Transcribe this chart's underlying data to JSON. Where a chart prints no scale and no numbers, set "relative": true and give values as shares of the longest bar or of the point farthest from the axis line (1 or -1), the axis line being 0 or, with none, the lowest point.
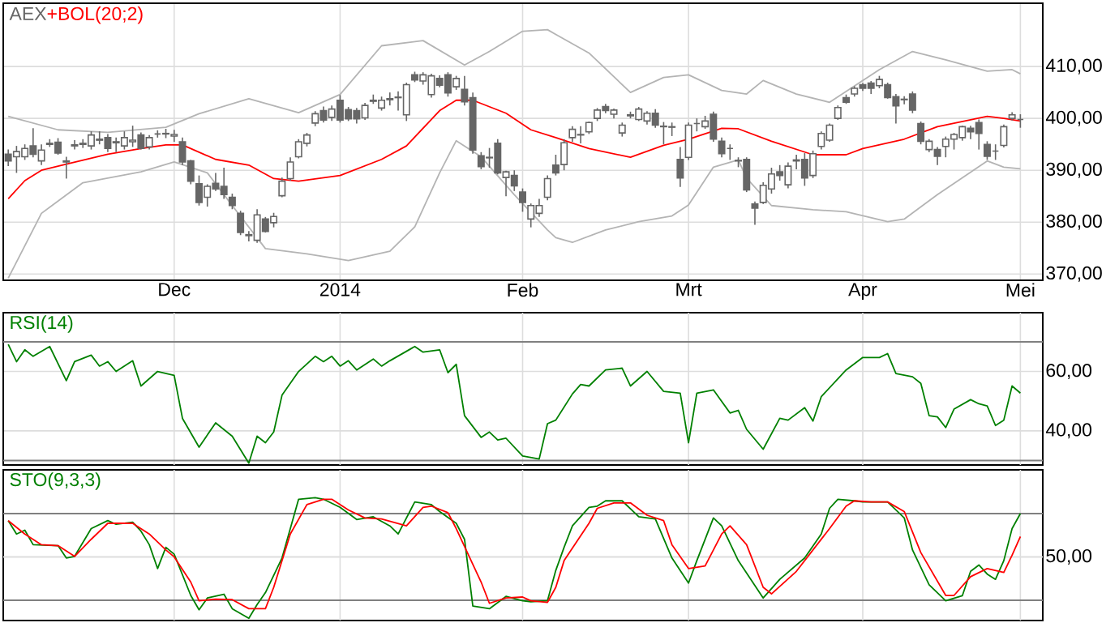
{
  "chart_data": [
    {
      "type": "candlestick",
      "legend": "top left",
      "grid": true,
      "categories": [
        null,
        null,
        null,
        null,
        null,
        null,
        null,
        null,
        null,
        null,
        null,
        null,
        null,
        null,
        null,
        null,
        null,
        null,
        null,
        null,
        "Dec",
        null,
        null,
        null,
        null,
        null,
        null,
        null,
        null,
        null,
        null,
        null,
        null,
        null,
        null,
        null,
        null,
        null,
        null,
        null,
        "2014",
        null,
        null,
        null,
        null,
        null,
        null,
        null,
        null,
        null,
        null,
        null,
        null,
        null,
        null,
        null,
        null,
        null,
        null,
        null,
        null,
        null,
        "Feb",
        null,
        null,
        null,
        null,
        null,
        null,
        null,
        null,
        null,
        null,
        null,
        null,
        null,
        null,
        null,
        null,
        null,
        null,
        null,
        "Mrt",
        null,
        null,
        null,
        null,
        null,
        null,
        null,
        null,
        null,
        null,
        null,
        null,
        null,
        null,
        null,
        null,
        null,
        null,
        null,
        null,
        "Apr",
        null,
        null,
        null,
        null,
        null,
        null,
        null,
        null,
        null,
        null,
        null,
        null,
        null,
        null,
        null,
        null,
        null,
        null,
        "Mei"
      ],
      "ylim": [
        368.8,
        422.2
      ],
      "yticks": [
        {
          "value": 370,
          "label": "370,00"
        },
        {
          "value": 380,
          "label": "380,00"
        },
        {
          "value": 390,
          "label": "390,00"
        },
        {
          "value": 400,
          "label": "400,00"
        },
        {
          "value": 410,
          "label": "410,00"
        }
      ],
      "series": [
        {
          "type": "candlestick",
          "name": "AEX",
          "color": "#666666",
          "ohlc": [
            [
              393.1,
              394,
              390.8,
              391.8
            ],
            [
              392.6,
              394.7,
              389.5,
              393.6
            ],
            [
              392.6,
              395,
              392,
              394.2
            ],
            [
              394.7,
              398.1,
              392.5,
              393.1
            ],
            [
              391.8,
              395,
              391,
              393.9
            ],
            [
              395,
              396,
              394.5,
              395.2
            ],
            [
              395.4,
              396.2,
              393,
              393.3
            ],
            [
              391.8,
              392.6,
              388.4,
              391.6
            ],
            [
              394.7,
              395.8,
              394,
              394.9
            ],
            [
              395,
              396,
              394.3,
              395.2
            ],
            [
              394.7,
              397.5,
              394,
              396.8
            ],
            [
              395.8,
              397.5,
              395,
              396
            ],
            [
              396.3,
              397,
              393.5,
              394.2
            ],
            [
              395.3,
              396.3,
              393.5,
              395.5
            ],
            [
              394.7,
              397.5,
              394,
              396.3
            ],
            [
              395.5,
              398.6,
              394.5,
              395.8
            ],
            [
              396.8,
              397.3,
              394,
              394.2
            ],
            [
              394.5,
              396.8,
              394,
              396.3
            ],
            [
              397,
              397.7,
              396.3,
              397
            ],
            [
              397,
              398,
              396.2,
              397.1
            ],
            [
              396.6,
              397.8,
              395.5,
              396.9
            ],
            [
              395.5,
              396.3,
              391,
              391.6
            ],
            [
              391.8,
              392,
              387.3,
              387.9
            ],
            [
              387.4,
              389,
              383.2,
              383.8
            ],
            [
              384.8,
              387.3,
              383,
              386.9
            ],
            [
              387.5,
              389.5,
              386,
              386.4
            ],
            [
              386.9,
              390.5,
              384.5,
              385.3
            ],
            [
              384.8,
              385.5,
              382.5,
              383.2
            ],
            [
              381.7,
              382.2,
              377.5,
              378
            ],
            [
              377.6,
              378.3,
              376.3,
              377.4
            ],
            [
              376.5,
              382.5,
              376,
              381.4
            ],
            [
              380.6,
              381,
              378,
              378.2
            ],
            [
              379.9,
              381.8,
              379,
              381.1
            ],
            [
              385.1,
              388.6,
              384.8,
              387.9
            ],
            [
              388.4,
              392.5,
              388,
              391.6
            ],
            [
              392.6,
              396,
              392.3,
              395.5
            ],
            [
              395.2,
              397.2,
              394.6,
              396.8
            ],
            [
              399.1,
              401.4,
              398.5,
              400.9
            ],
            [
              401.5,
              402.3,
              399.2,
              399.7
            ],
            [
              400.2,
              402.5,
              399.5,
              401.8
            ],
            [
              403.5,
              404.5,
              399.2,
              399.7
            ],
            [
              401.7,
              402.2,
              399.5,
              399.9
            ],
            [
              401.5,
              402,
              399,
              399.9
            ],
            [
              400.1,
              403,
              399.7,
              402.5
            ],
            [
              403.3,
              404.6,
              402.8,
              403.5
            ],
            [
              402,
              404.2,
              401.5,
              403.5
            ],
            [
              403.6,
              405,
              402.5,
              403.8
            ],
            [
              404,
              405.2,
              401.5,
              404.1
            ],
            [
              400.7,
              406.9,
              399.5,
              406.5
            ],
            [
              408.4,
              409,
              407,
              407.4
            ],
            [
              407.2,
              408.9,
              406.5,
              408.4
            ],
            [
              404.6,
              408.6,
              404,
              408.2
            ],
            [
              407.7,
              408.3,
              406,
              406.4
            ],
            [
              408.4,
              408.9,
              404.2,
              404.9
            ],
            [
              406.1,
              408.2,
              405.5,
              407.7
            ],
            [
              405.6,
              408.2,
              402.5,
              403.2
            ],
            [
              404,
              405,
              393.2,
              393.9
            ],
            [
              392.8,
              393.5,
              390.2,
              390.7
            ],
            [
              392.5,
              394.3,
              390.5,
              392.4
            ],
            [
              395.2,
              396,
              389.2,
              389.5
            ],
            [
              388.6,
              389.9,
              385,
              389.7
            ],
            [
              389,
              390,
              386,
              387
            ],
            [
              385.8,
              386.5,
              382,
              383.8
            ],
            [
              380.6,
              383.6,
              379,
              383.2
            ],
            [
              381.7,
              384.5,
              381,
              383.2
            ],
            [
              384.8,
              389,
              384.2,
              388.4
            ],
            [
              391,
              393,
              389,
              389.5
            ],
            [
              391.1,
              396,
              390,
              395.3
            ],
            [
              396.3,
              398.5,
              395.5,
              397.9
            ],
            [
              396.8,
              398.5,
              395.2,
              396.9
            ],
            [
              397.4,
              399.4,
              397,
              399.2
            ],
            [
              400,
              402,
              399.5,
              401.6
            ],
            [
              402.3,
              402.8,
              401,
              401.5
            ],
            [
              400.8,
              401.9,
              400,
              401.6
            ],
            [
              397.2,
              399.2,
              396.5,
              398.7
            ],
            [
              400.5,
              401.3,
              400,
              400.7
            ],
            [
              399.8,
              402.2,
              399.5,
              401.8
            ],
            [
              399.5,
              401.4,
              398.8,
              401
            ],
            [
              401,
              401.8,
              398.2,
              398.7
            ],
            [
              398.5,
              399.3,
              395,
              398.4
            ],
            [
              398.4,
              399.2,
              396.6,
              398.3
            ],
            [
              392.1,
              394.5,
              386.8,
              388.5
            ],
            [
              392.5,
              399.2,
              392,
              398.7
            ],
            [
              399,
              400,
              397.5,
              399
            ],
            [
              398.4,
              400.5,
              398,
              399.5
            ],
            [
              400.8,
              401.3,
              395.5,
              396
            ],
            [
              395.6,
              396.3,
              392.5,
              393.2
            ],
            [
              394.2,
              395,
              392,
              394.2
            ],
            [
              391.8,
              392.5,
              390.6,
              391.9
            ],
            [
              392.1,
              392.5,
              385.8,
              386.2
            ],
            [
              383.5,
              384,
              379.5,
              382.7
            ],
            [
              383.8,
              387.7,
              383.5,
              387.1
            ],
            [
              386.4,
              390.5,
              385.5,
              389.3
            ],
            [
              389.7,
              391,
              388,
              389
            ],
            [
              387.2,
              391.5,
              386.5,
              390.8
            ],
            [
              391.8,
              393,
              390.2,
              392
            ],
            [
              392.1,
              393.3,
              387,
              388.5
            ],
            [
              389,
              393.8,
              388.5,
              393.2
            ],
            [
              394.6,
              397.5,
              394,
              397.1
            ],
            [
              395.8,
              399,
              395.5,
              398.7
            ],
            [
              400,
              402.5,
              399.7,
              402.1
            ],
            [
              404,
              404.6,
              402.8,
              403.1
            ],
            [
              404.7,
              406.2,
              404.2,
              405.8
            ],
            [
              406.5,
              406.8,
              405.3,
              405.8
            ],
            [
              406.8,
              407.2,
              404.7,
              405.8
            ],
            [
              406.3,
              408.2,
              405.8,
              407.5
            ],
            [
              406.5,
              406.9,
              403.8,
              404
            ],
            [
              404.2,
              404.7,
              399,
              402.4
            ],
            [
              403.6,
              404.3,
              402.7,
              403.7
            ],
            [
              404.7,
              405.2,
              401,
              401.6
            ],
            [
              399,
              399.4,
              395,
              395.6
            ],
            [
              394,
              396,
              393.5,
              395.6
            ],
            [
              394,
              394.5,
              391,
              392.7
            ],
            [
              394.6,
              396.5,
              392.5,
              396
            ],
            [
              396,
              397.2,
              394,
              396.9
            ],
            [
              396.3,
              398.6,
              395.7,
              398.4
            ],
            [
              398.1,
              398.6,
              396,
              397.4
            ],
            [
              399.2,
              399.8,
              394,
              397.1
            ],
            [
              395,
              395.6,
              392,
              392.7
            ],
            [
              393.7,
              395,
              392,
              393.7
            ],
            [
              394.8,
              398.8,
              394.4,
              398.4
            ],
            [
              400,
              401.2,
              399.6,
              400.7
            ],
            [
              399.8,
              400.8,
              398.2,
              399.8
            ]
          ]
        },
        {
          "type": "line",
          "color": "#b4b4b4",
          "values": [
            400.4,
            null,
            null,
            null,
            null,
            null,
            397.8,
            null,
            null,
            null,
            null,
            null,
            397.3,
            null,
            null,
            null,
            null,
            null,
            null,
            398.3,
            null,
            null,
            null,
            400.9,
            null,
            null,
            null,
            null,
            null,
            403.8,
            null,
            null,
            null,
            null,
            null,
            401.1,
            null,
            null,
            null,
            null,
            404.6,
            null,
            null,
            null,
            null,
            414,
            null,
            null,
            null,
            null,
            415,
            null,
            null,
            null,
            null,
            410.3,
            null,
            null,
            412.9,
            null,
            null,
            null,
            416.8,
            null,
            null,
            417.1,
            416.2,
            null,
            null,
            null,
            412.6,
            null,
            null,
            null,
            null,
            405,
            null,
            null,
            null,
            407.9,
            null,
            null,
            408.4,
            null,
            null,
            null,
            405.4,
            null,
            null,
            404.7,
            null,
            407.3,
            null,
            null,
            null,
            404.7,
            null,
            null,
            null,
            403.1,
            null,
            null,
            null,
            null,
            null,
            409.4,
            null,
            null,
            null,
            412.9,
            null,
            null,
            null,
            411.3,
            null,
            null,
            null,
            null,
            409.1,
            null,
            null,
            409.4,
            408.6
          ]
        },
        {
          "type": "line",
          "name": "+BOL(20;2)",
          "color": "#ff0000",
          "values": [
            384.5,
            null,
            388,
            null,
            390,
            null,
            null,
            391.2,
            null,
            null,
            null,
            null,
            393.1,
            null,
            null,
            null,
            394.2,
            null,
            null,
            394.9,
            null,
            394.9,
            null,
            null,
            null,
            392.1,
            null,
            null,
            null,
            391,
            null,
            null,
            388.4,
            null,
            null,
            387.9,
            null,
            null,
            null,
            null,
            389,
            null,
            null,
            null,
            null,
            392.1,
            null,
            null,
            394.7,
            null,
            null,
            null,
            401.5,
            null,
            403.5,
            null,
            403.5,
            null,
            null,
            null,
            401,
            null,
            null,
            397.8,
            null,
            null,
            396.3,
            null,
            null,
            null,
            394.2,
            null,
            null,
            null,
            null,
            392.5,
            null,
            null,
            null,
            394.8,
            null,
            null,
            396,
            null,
            null,
            null,
            398.1,
            null,
            398,
            null,
            null,
            null,
            395.6,
            null,
            null,
            null,
            null,
            393,
            null,
            null,
            null,
            393,
            null,
            394.2,
            null,
            null,
            null,
            null,
            396,
            null,
            null,
            null,
            398.4,
            null,
            null,
            null,
            null,
            null,
            400.4,
            null,
            400,
            null,
            399.5
          ]
        },
        {
          "type": "line",
          "color": "#b4b4b4",
          "values": [
            369.2,
            null,
            null,
            null,
            381.7,
            null,
            null,
            null,
            null,
            387.6,
            null,
            null,
            null,
            null,
            null,
            null,
            389.7,
            null,
            null,
            null,
            391.6,
            null,
            null,
            null,
            389.5,
            null,
            null,
            383.2,
            null,
            null,
            null,
            374.9,
            null,
            null,
            null,
            null,
            373.9,
            null,
            null,
            null,
            null,
            372.6,
            null,
            null,
            null,
            null,
            374.4,
            null,
            null,
            379.1,
            null,
            null,
            389.5,
            null,
            395.7,
            null,
            null,
            392.6,
            null,
            null,
            null,
            385.3,
            null,
            null,
            null,
            378.5,
            377,
            null,
            376.1,
            null,
            null,
            null,
            378.5,
            null,
            null,
            null,
            380.1,
            null,
            null,
            null,
            381.2,
            null,
            383.3,
            null,
            null,
            390.6,
            null,
            null,
            392,
            388.5,
            null,
            null,
            383.2,
            null,
            null,
            null,
            null,
            382.4,
            null,
            null,
            null,
            382,
            null,
            null,
            null,
            null,
            380.1,
            null,
            380.6,
            null,
            null,
            null,
            385.3,
            null,
            null,
            null,
            null,
            null,
            391.8,
            null,
            390.6,
            null,
            390.3
          ]
        }
      ]
    },
    {
      "type": "line",
      "legend": "top left",
      "grid": true,
      "categories": [
        null,
        null,
        null,
        null,
        null,
        null,
        null,
        null,
        null,
        null,
        null,
        null,
        null,
        null,
        null,
        null,
        null,
        null,
        null,
        null,
        null,
        null,
        null,
        null,
        null,
        null,
        null,
        null,
        null,
        null,
        null,
        null,
        null,
        null,
        null,
        null,
        null,
        null,
        null,
        null,
        null,
        null,
        null,
        null,
        null,
        null,
        null,
        null,
        null,
        null,
        null,
        null,
        null,
        null,
        null,
        null,
        null,
        null,
        null,
        null,
        null,
        null,
        null,
        null,
        null,
        null,
        null,
        null,
        null,
        null,
        null,
        null,
        null,
        null,
        null,
        null,
        null,
        null,
        null,
        null,
        null,
        null,
        null,
        null,
        null,
        null,
        null,
        null,
        null,
        null,
        null,
        null,
        null,
        null,
        null,
        null,
        null,
        null,
        null,
        null,
        null,
        null,
        null,
        null,
        null,
        null,
        null,
        null,
        null,
        null,
        null,
        null,
        null,
        null,
        null,
        null,
        null,
        null,
        null,
        null,
        null,
        null,
        null
      ],
      "ylim": [
        28.5,
        79.8
      ],
      "yticks": [
        {
          "value": 40,
          "label": "40,00"
        },
        {
          "value": 60,
          "label": "60,00"
        }
      ],
      "ref_lines": [
        {
          "axis": "y",
          "value": 70,
          "color": "#808080"
        },
        {
          "axis": "y",
          "value": 30,
          "color": "#808080"
        }
      ],
      "series": [
        {
          "name": "RSI(14)",
          "color": "#008000",
          "values": [
            69.1,
            63.3,
            67.3,
            65.1,
            null,
            68.4,
            null,
            56.9,
            63.3,
            null,
            65.5,
            61.8,
            63.3,
            60,
            null,
            63.6,
            55.1,
            null,
            60,
            null,
            58.7,
            44.2,
            null,
            34.5,
            null,
            42.7,
            null,
            38.2,
            null,
            29.1,
            38.2,
            36,
            39.6,
            52,
            null,
            60,
            null,
            65.1,
            63.3,
            65.1,
            61.8,
            63.6,
            60.5,
            null,
            64.2,
            61.8,
            63.6,
            null,
            null,
            68.4,
            66.5,
            null,
            67.3,
            59.6,
            62.4,
            45.1,
            null,
            37.8,
            39.6,
            36.9,
            37.5,
            null,
            31.5,
            null,
            30.5,
            42.4,
            43.6,
            null,
            52.4,
            55.6,
            55.1,
            null,
            60.5,
            null,
            61.1,
            55.1,
            null,
            60,
            null,
            53.3,
            null,
            52.7,
            36,
            52.7,
            null,
            53.8,
            null,
            46,
            46.9,
            40.5,
            null,
            33.8,
            null,
            44.2,
            43.6,
            null,
            47.8,
            43.3,
            51.5,
            null,
            null,
            60.5,
            null,
            64.7,
            null,
            64.7,
            66,
            59.3,
            null,
            58.2,
            56,
            45.1,
            44.7,
            41.1,
            47.3,
            null,
            50.5,
            49.1,
            48.4,
            41.8,
            43.6,
            55.1,
            52.7
          ]
        }
      ]
    },
    {
      "type": "line",
      "legend": "top left",
      "grid": "x",
      "relative": true,
      "annotations": [
        "50,00"
      ],
      "categories": [
        null,
        null,
        null,
        null,
        null,
        null,
        null,
        null,
        null,
        null,
        null,
        null,
        null,
        null,
        null,
        null,
        null,
        null,
        null,
        null,
        null,
        null,
        null,
        null,
        null,
        null,
        null,
        null,
        null,
        null,
        null,
        null,
        null,
        null,
        null,
        null,
        null,
        null,
        null,
        null,
        null,
        null,
        null,
        null,
        null,
        null,
        null,
        null,
        null,
        null,
        null,
        null,
        null,
        null,
        null,
        null,
        null,
        null,
        null,
        null,
        null,
        null,
        null,
        null,
        null,
        null,
        null,
        null,
        null,
        null,
        null,
        null,
        null,
        null,
        null,
        null,
        null,
        null,
        null,
        null,
        null,
        null,
        null,
        null,
        null,
        null,
        null,
        null,
        null,
        null,
        null,
        null,
        null,
        null,
        null,
        null,
        null,
        null,
        null,
        null,
        null,
        null,
        null,
        null,
        null,
        null,
        null,
        null,
        null,
        null,
        null,
        null,
        null,
        null,
        null,
        null,
        null,
        null,
        null,
        null,
        null,
        null,
        null
      ],
      "ref_lines": [
        {
          "axis": "y",
          "value": 0.87,
          "color": "#808080"
        },
        {
          "axis": "y",
          "value": 0.165,
          "color": "#808080"
        },
        {
          "axis": "y",
          "value": 0.518,
          "color": "#dddddd"
        }
      ],
      "series": [
        {
          "name": "STO(9,3,3)",
          "color": "#008000",
          "values": [
            0.813,
            0.704,
            0.735,
            0.617,
            null,
            null,
            0.609,
            0.509,
            0.522,
            null,
            0.748,
            null,
            0.813,
            0.783,
            null,
            0.8,
            0.727,
            0.617,
            0.423,
            0.596,
            0.54,
            null,
            0.204,
            0.087,
            0.183,
            null,
            0.214,
            0.096,
            null,
            0.018,
            0.13,
            0.227,
            null,
            0.509,
            null,
            0.987,
            null,
            1,
            0.987,
            null,
            0.921,
            null,
            0.822,
            null,
            0.844,
            null,
            0.77,
            0.704,
            null,
            0.965,
            null,
            0.944,
            0.887,
            null,
            0.791,
            0.661,
            0.117,
            null,
            0.096,
            null,
            0.196,
            null,
            0.161,
            0.153,
            null,
            0.161,
            0.408,
            0.596,
            0.77,
            null,
            0.921,
            0.931,
            0.974,
            null,
            0.974,
            null,
            0.844,
            null,
            0.826,
            null,
            0.509,
            null,
            0.305,
            0.487,
            null,
            0.835,
            0.77,
            null,
            0.487,
            null,
            null,
            0.183,
            null,
            0.335,
            null,
            null,
            0.509,
            null,
            0.704,
            0.913,
            0.987,
            null,
            0.974,
            0.965,
            null,
            null,
            0.965,
            null,
            0.835,
            0.574,
            null,
            0.291,
            null,
            0.161,
            null,
            0.201,
            0.4,
            0.452,
            0.378,
            0.335,
            0.487,
            0.748,
            0.87
          ]
        },
        {
          "color": "#ff0000",
          "values": [
            0.813,
            null,
            0.704,
            null,
            0.617,
            null,
            0.609,
            null,
            0.522,
            null,
            0.661,
            null,
            0.791,
            null,
            null,
            0.791,
            null,
            0.704,
            null,
            0.574,
            0.518,
            null,
            0.313,
            0.161,
            null,
            0.174,
            null,
            0.17,
            null,
            0.096,
            null,
            0.096,
            0.27,
            null,
            0.704,
            null,
            0.944,
            null,
            0.987,
            0.987,
            null,
            0.9,
            null,
            0.835,
            null,
            0.826,
            null,
            null,
            0.77,
            null,
            0.921,
            0.931,
            null,
            0.878,
            0.748,
            null,
            null,
            0.313,
            0.14,
            null,
            0.183,
            null,
            0.191,
            0.161,
            null,
            0.148,
            0.27,
            0.487,
            null,
            null,
            0.791,
            0.913,
            null,
            0.957,
            null,
            0.957,
            null,
            0.857,
            null,
            0.813,
            0.617,
            null,
            0.423,
            null,
            0.444,
            null,
            0.704,
            0.77,
            null,
            0.617,
            null,
            0.27,
            0.217,
            null,
            null,
            0.4,
            null,
            0.574,
            null,
            0.748,
            null,
            0.931,
            0.974,
            null,
            0.965,
            null,
            0.965,
            null,
            0.887,
            null,
            0.553,
            null,
            null,
            0.204,
            0.204,
            null,
            0.357,
            null,
            0.423,
            null,
            0.392,
            0.531,
            0.683
          ]
        }
      ]
    }
  ]
}
